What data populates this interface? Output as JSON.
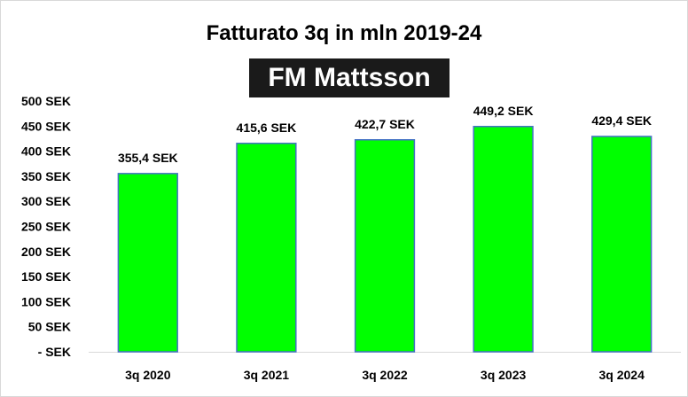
{
  "chart_data": {
    "type": "bar",
    "title": "Fatturato  3q in mln 2019-24",
    "logo_text": "FM Mattsson",
    "categories": [
      "3q 2020",
      "3q 2021",
      "3q 2022",
      "3q 2023",
      "3q 2024"
    ],
    "values": [
      355.4,
      415.6,
      422.7,
      449.2,
      429.4
    ],
    "data_labels": [
      "355,4 SEK",
      "415,6 SEK",
      "422,7 SEK",
      "449,2 SEK",
      "429,4 SEK"
    ],
    "y_ticks": [
      "- SEK",
      "50 SEK",
      "100 SEK",
      "150 SEK",
      "200 SEK",
      "250 SEK",
      "300 SEK",
      "350 SEK",
      "400 SEK",
      "450 SEK",
      "500 SEK"
    ],
    "ylim": [
      0,
      500
    ],
    "grid": false,
    "legend": "none",
    "bar_color": "#00ff00",
    "bar_border_color": "#4472c4"
  }
}
